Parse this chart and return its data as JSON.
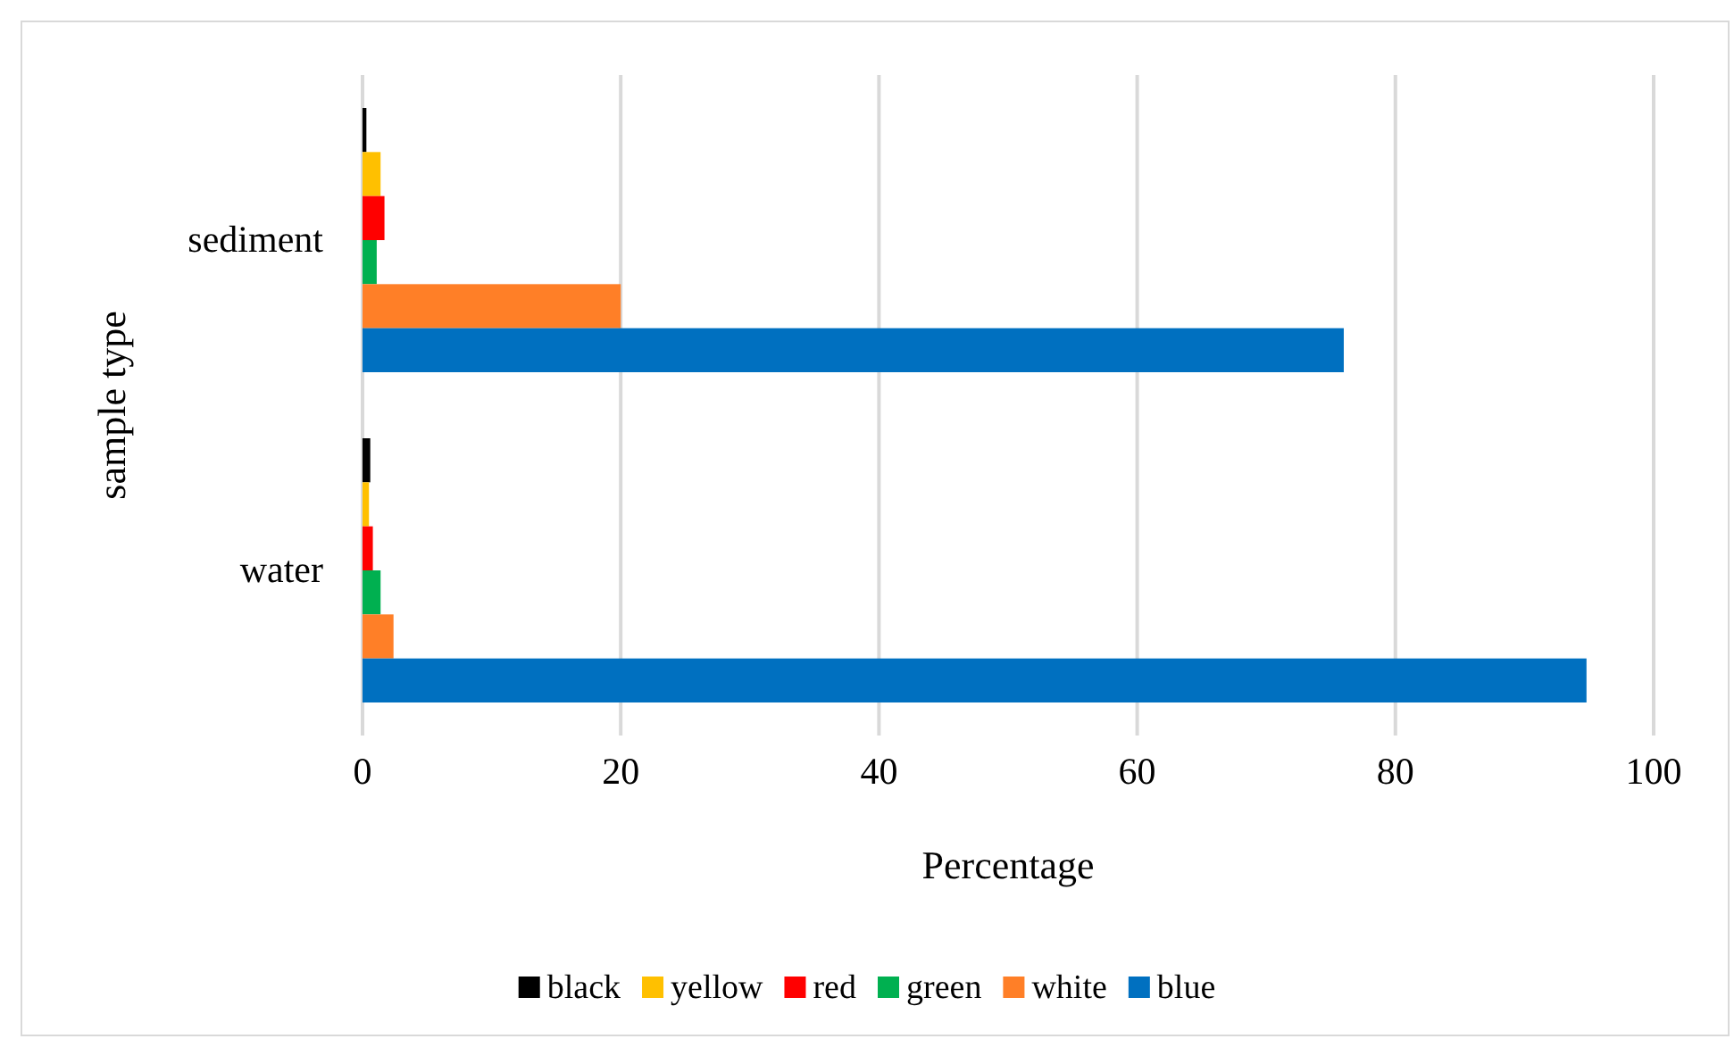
{
  "chart_data": {
    "type": "bar",
    "orientation": "horizontal",
    "xlabel": "Percentage",
    "ylabel": "sample type",
    "categories": [
      "sediment",
      "water"
    ],
    "series": [
      {
        "name": "black",
        "color": "#000000",
        "values": [
          0.3,
          0.6
        ]
      },
      {
        "name": "yellow",
        "color": "#ffc000",
        "values": [
          1.4,
          0.5
        ]
      },
      {
        "name": "red",
        "color": "#ff0000",
        "values": [
          1.7,
          0.8
        ]
      },
      {
        "name": "green",
        "color": "#00b050",
        "values": [
          1.1,
          1.4
        ]
      },
      {
        "name": "white",
        "color": "#ff7f27",
        "values": [
          20,
          2.4
        ]
      },
      {
        "name": "blue",
        "color": "#0070c0",
        "values": [
          76,
          94.8
        ]
      }
    ],
    "xlim": [
      0,
      100
    ],
    "xticks": [
      0,
      20,
      40,
      60,
      80,
      100
    ],
    "grid": "x",
    "legend": "bottom"
  }
}
